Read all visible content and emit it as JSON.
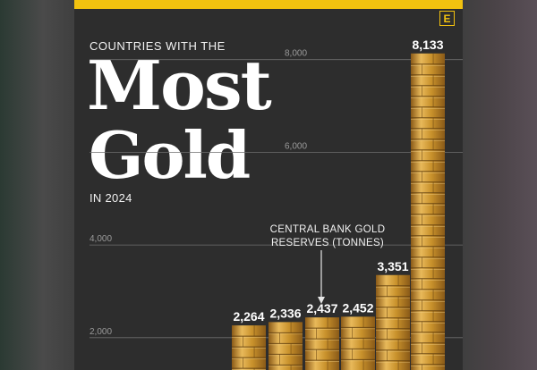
{
  "brand": {
    "logo_letter": "E",
    "accent": "#f2c20f"
  },
  "heading": {
    "kicker": "COUNTRIES WITH THE",
    "title_line1": "Most",
    "title_line2": "Gold",
    "subtitle": "IN 2024"
  },
  "annotation": "CENTRAL BANK GOLD RESERVES (TONNES)",
  "chart_data": {
    "type": "bar",
    "title": "Countries with the Most Gold in 2024",
    "ylabel": "Central bank gold reserves (tonnes)",
    "y_ticks": [
      2000,
      4000,
      6000,
      8000
    ],
    "y_tick_labels": [
      "2,000",
      "4,000",
      "6,000",
      "8,000"
    ],
    "ylim": [
      0,
      8800
    ],
    "series": [
      {
        "values": [
          2264,
          2336,
          2437,
          2452,
          3351,
          8133
        ],
        "labels": [
          "2,264",
          "2,336",
          "2,437",
          "2,452",
          "3,351",
          "8,133"
        ]
      }
    ],
    "grid": true,
    "colors": {
      "gold_light": "#e8b95a",
      "gold_mid": "#c9922c",
      "gold_dark": "#8a5a18",
      "grid": "#6e6e6e"
    }
  }
}
